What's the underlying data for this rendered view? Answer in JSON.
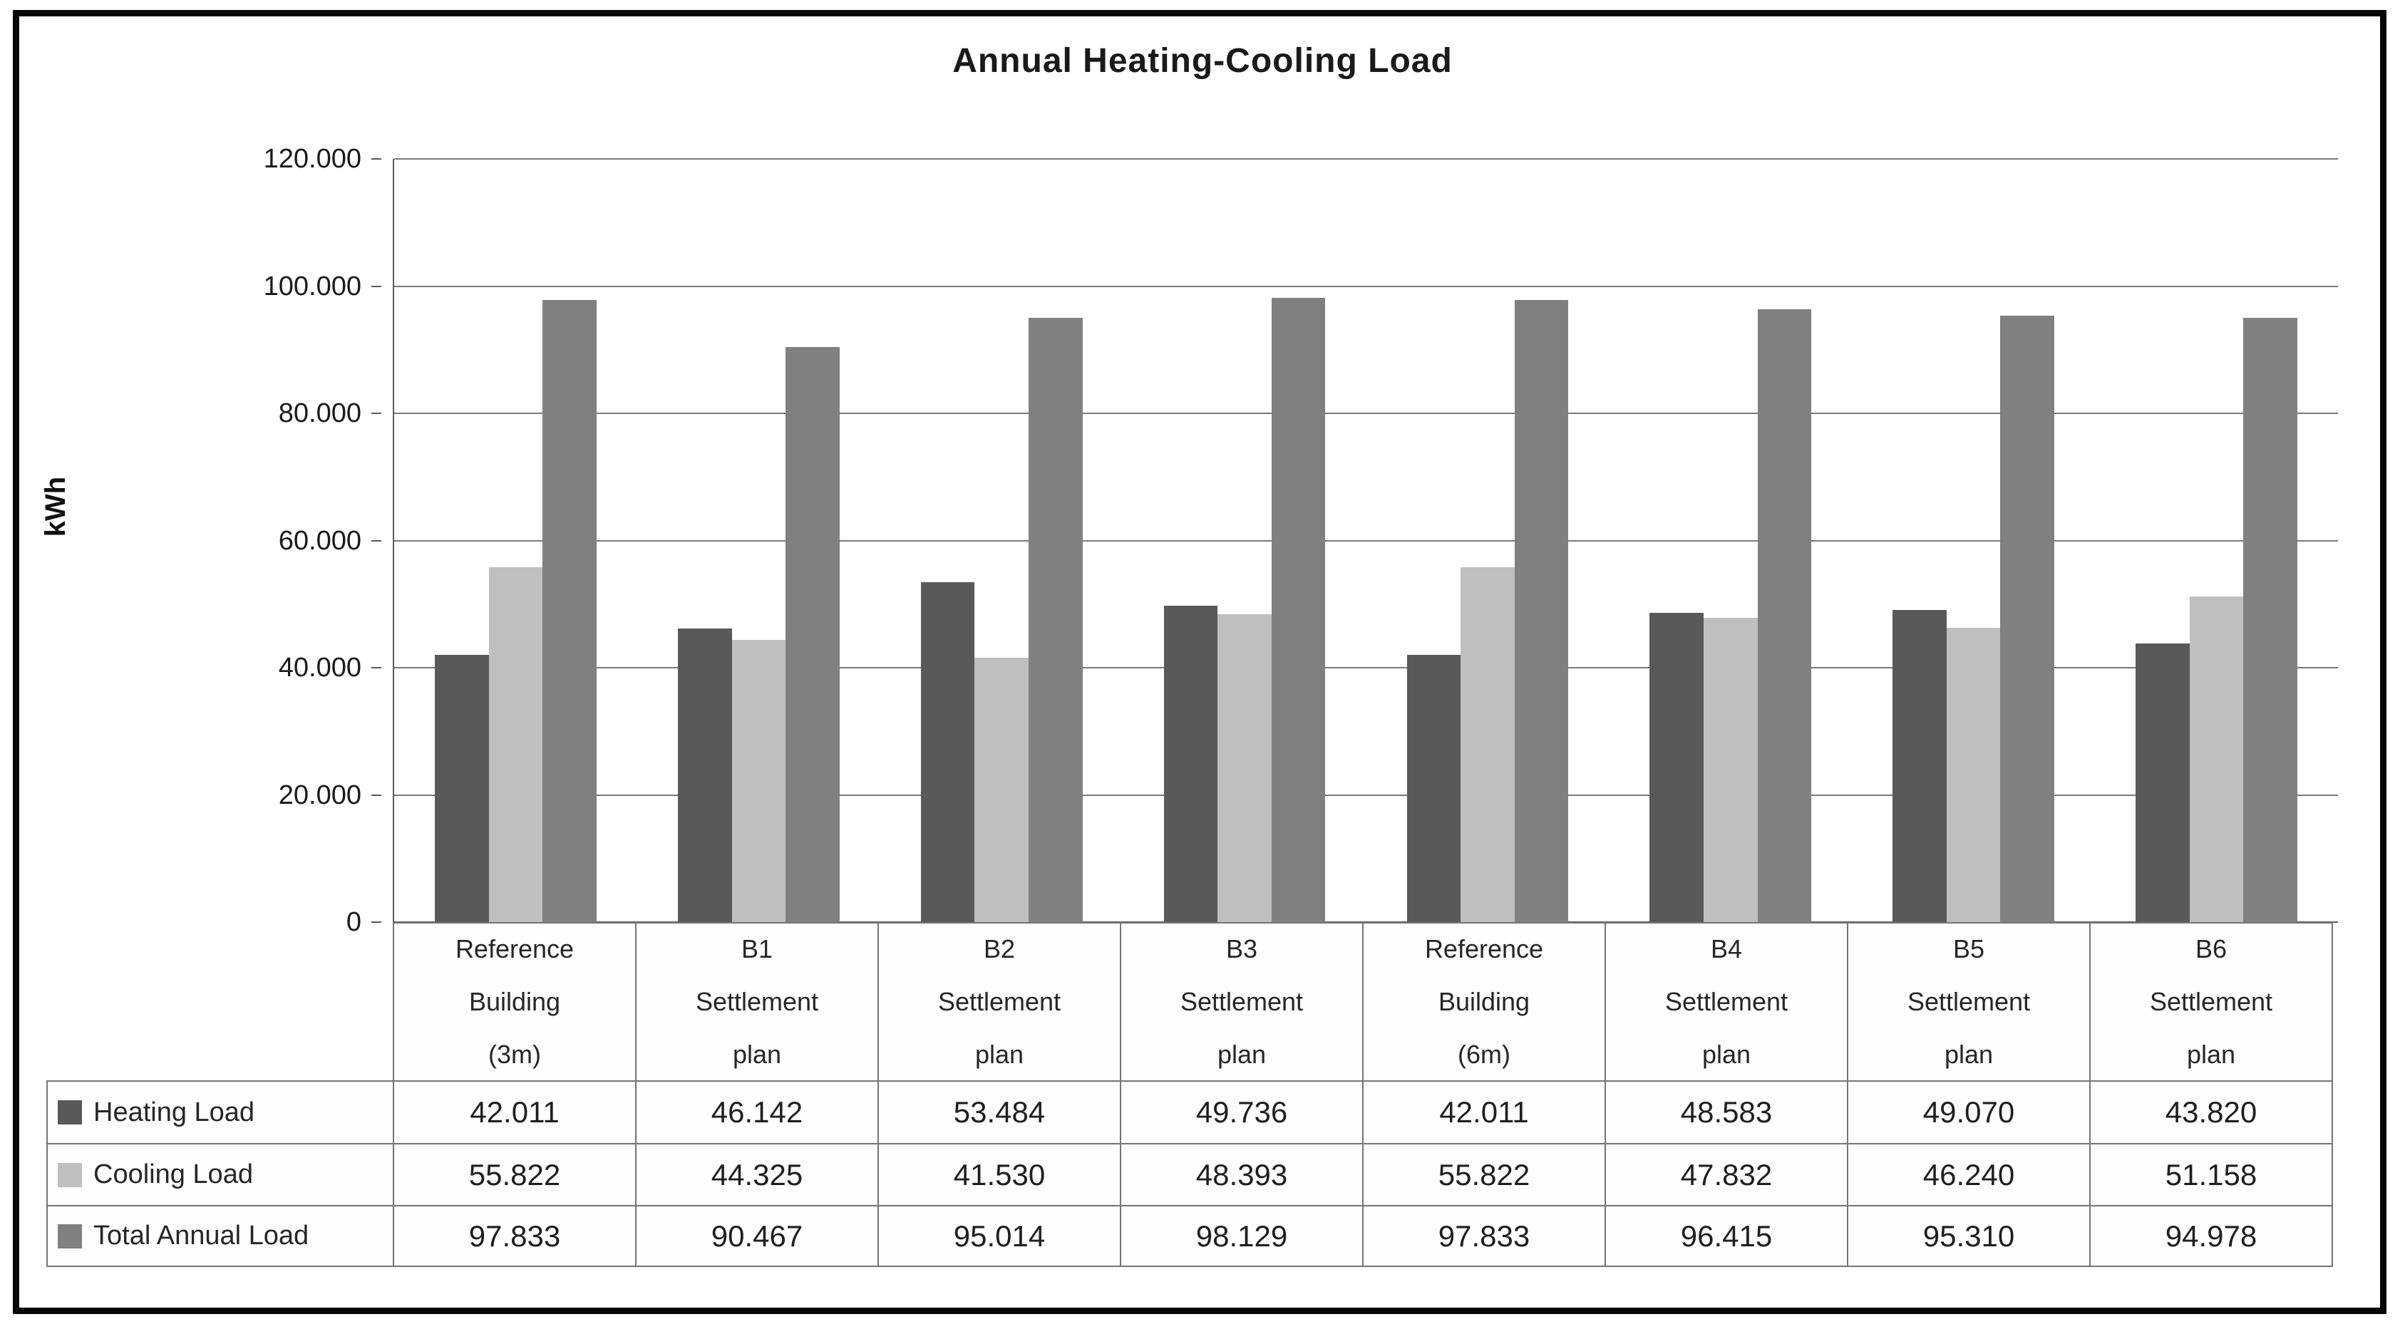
{
  "chart_data": {
    "type": "bar",
    "title": "Annual Heating-Cooling Load",
    "ylabel": "kWh",
    "ylim": [
      0,
      120000
    ],
    "yticks": [
      120000,
      100000,
      80000,
      60000,
      40000,
      20000,
      0
    ],
    "grid": true,
    "legend_position": "table-left",
    "number_format": "thousands-dot",
    "categories": [
      "Reference Building (3m)",
      "B1 Settlement plan",
      "B2 Settlement plan",
      "B3 Settlement plan",
      "Reference Building (6m)",
      "B4 Settlement plan",
      "B5 Settlement plan",
      "B6 Settlement plan"
    ],
    "category_lines": [
      [
        "Reference",
        "Building",
        "(3m)"
      ],
      [
        "B1",
        "Settlement",
        "plan"
      ],
      [
        "B2",
        "Settlement",
        "plan"
      ],
      [
        "B3",
        "Settlement",
        "plan"
      ],
      [
        "Reference",
        "Building",
        "(6m)"
      ],
      [
        "B4",
        "Settlement",
        "plan"
      ],
      [
        "B5",
        "Settlement",
        "plan"
      ],
      [
        "B6",
        "Settlement",
        "plan"
      ]
    ],
    "series": [
      {
        "name": "Heating Load",
        "color": "#595959",
        "values": [
          42011,
          46142,
          53484,
          49736,
          42011,
          48583,
          49070,
          43820
        ]
      },
      {
        "name": "Cooling Load",
        "color": "#bfbfbf",
        "values": [
          55822,
          44325,
          41530,
          48393,
          55822,
          47832,
          46240,
          51158
        ]
      },
      {
        "name": "Total Annual Load",
        "color": "#808080",
        "values": [
          97833,
          90467,
          95014,
          98129,
          97833,
          96415,
          95310,
          94978
        ]
      }
    ]
  },
  "colors": {
    "frame": "#050505",
    "gridline": "#7a7a7a",
    "axis": "#5a5a5a",
    "table_border": "#757575",
    "text": "#1f1f1f"
  }
}
